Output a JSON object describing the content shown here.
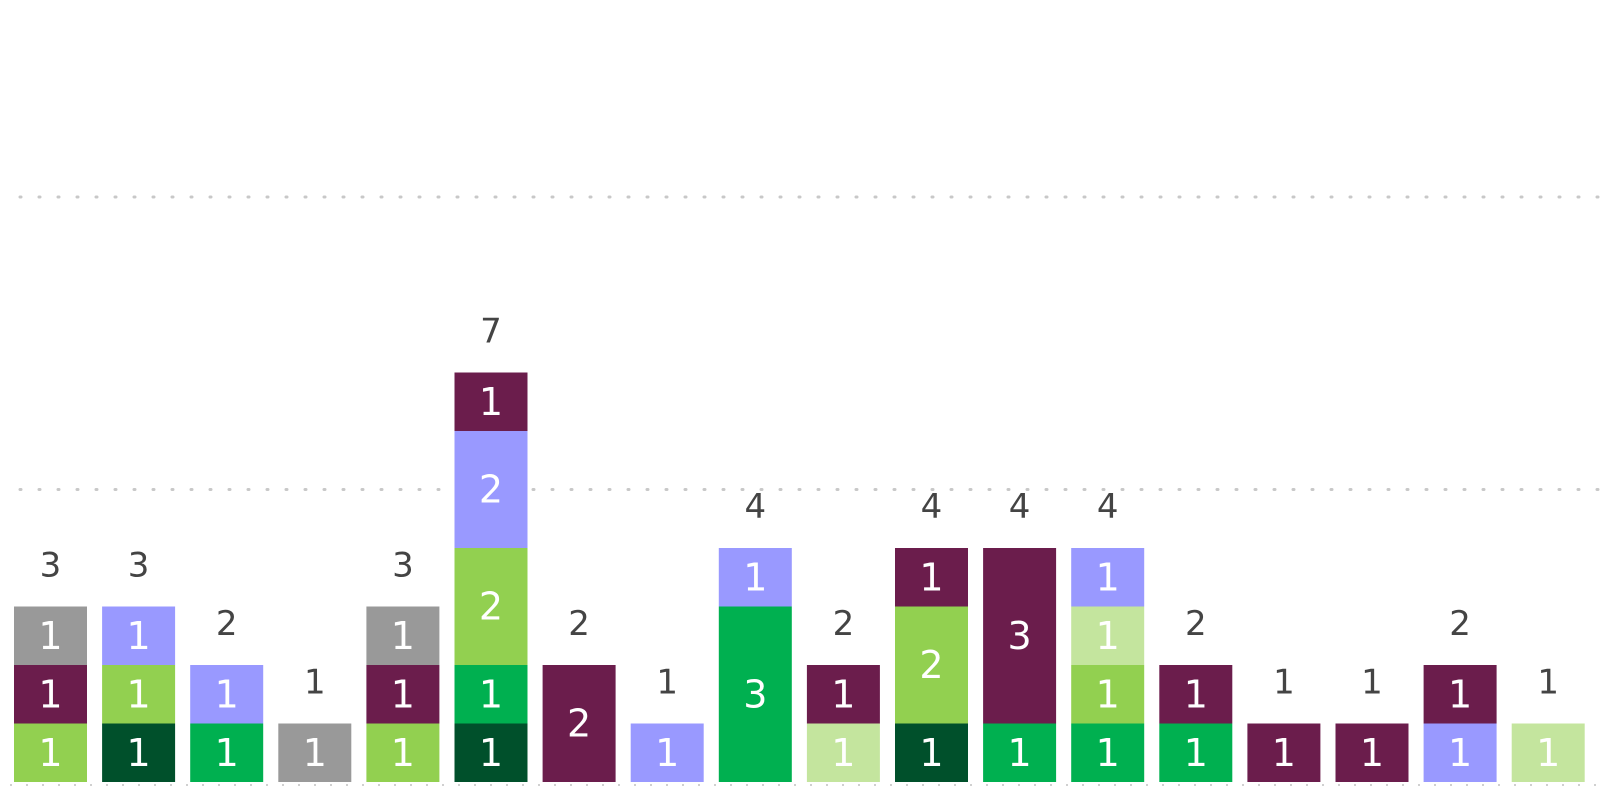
{
  "colors": {
    "gray": "#999999",
    "maroon": "#6b1d4c",
    "lightgreen": "#92d050",
    "periwinkle": "#9999ff",
    "darkgreen": "#00502b",
    "green": "#00b050",
    "palegreen": "#c4e59e"
  },
  "chart_data": {
    "type": "bar",
    "stacked": true,
    "ylim": [
      0,
      10
    ],
    "gridlines": [
      5,
      10
    ],
    "grid": true,
    "legend": "none",
    "bars": [
      {
        "total": 3,
        "segments": [
          {
            "color": "lightgreen",
            "value": 1
          },
          {
            "color": "maroon",
            "value": 1
          },
          {
            "color": "gray",
            "value": 1
          }
        ]
      },
      {
        "total": 3,
        "segments": [
          {
            "color": "darkgreen",
            "value": 1
          },
          {
            "color": "lightgreen",
            "value": 1
          },
          {
            "color": "periwinkle",
            "value": 1
          }
        ]
      },
      {
        "total": 2,
        "segments": [
          {
            "color": "green",
            "value": 1
          },
          {
            "color": "periwinkle",
            "value": 1
          }
        ]
      },
      {
        "total": 1,
        "segments": [
          {
            "color": "gray",
            "value": 1
          }
        ]
      },
      {
        "total": 3,
        "segments": [
          {
            "color": "lightgreen",
            "value": 1
          },
          {
            "color": "maroon",
            "value": 1
          },
          {
            "color": "gray",
            "value": 1
          }
        ]
      },
      {
        "total": 7,
        "segments": [
          {
            "color": "darkgreen",
            "value": 1
          },
          {
            "color": "green",
            "value": 1
          },
          {
            "color": "lightgreen",
            "value": 2
          },
          {
            "color": "periwinkle",
            "value": 2
          },
          {
            "color": "maroon",
            "value": 1
          }
        ]
      },
      {
        "total": 2,
        "segments": [
          {
            "color": "maroon",
            "value": 2
          }
        ]
      },
      {
        "total": 1,
        "segments": [
          {
            "color": "periwinkle",
            "value": 1
          }
        ]
      },
      {
        "total": 4,
        "segments": [
          {
            "color": "green",
            "value": 3
          },
          {
            "color": "periwinkle",
            "value": 1
          }
        ]
      },
      {
        "total": 2,
        "segments": [
          {
            "color": "palegreen",
            "value": 1
          },
          {
            "color": "maroon",
            "value": 1
          }
        ]
      },
      {
        "total": 4,
        "segments": [
          {
            "color": "darkgreen",
            "value": 1
          },
          {
            "color": "lightgreen",
            "value": 2
          },
          {
            "color": "maroon",
            "value": 1
          }
        ]
      },
      {
        "total": 4,
        "segments": [
          {
            "color": "green",
            "value": 1
          },
          {
            "color": "maroon",
            "value": 3
          }
        ]
      },
      {
        "total": 4,
        "segments": [
          {
            "color": "green",
            "value": 1
          },
          {
            "color": "lightgreen",
            "value": 1
          },
          {
            "color": "palegreen",
            "value": 1
          },
          {
            "color": "periwinkle",
            "value": 1
          }
        ]
      },
      {
        "total": 2,
        "segments": [
          {
            "color": "green",
            "value": 1
          },
          {
            "color": "maroon",
            "value": 1
          }
        ]
      },
      {
        "total": 1,
        "segments": [
          {
            "color": "maroon",
            "value": 1
          }
        ]
      },
      {
        "total": 1,
        "segments": [
          {
            "color": "maroon",
            "value": 1
          }
        ]
      },
      {
        "total": 2,
        "segments": [
          {
            "color": "periwinkle",
            "value": 1
          },
          {
            "color": "maroon",
            "value": 1
          }
        ]
      },
      {
        "total": 1,
        "segments": [
          {
            "color": "palegreen",
            "value": 1
          }
        ]
      }
    ]
  }
}
